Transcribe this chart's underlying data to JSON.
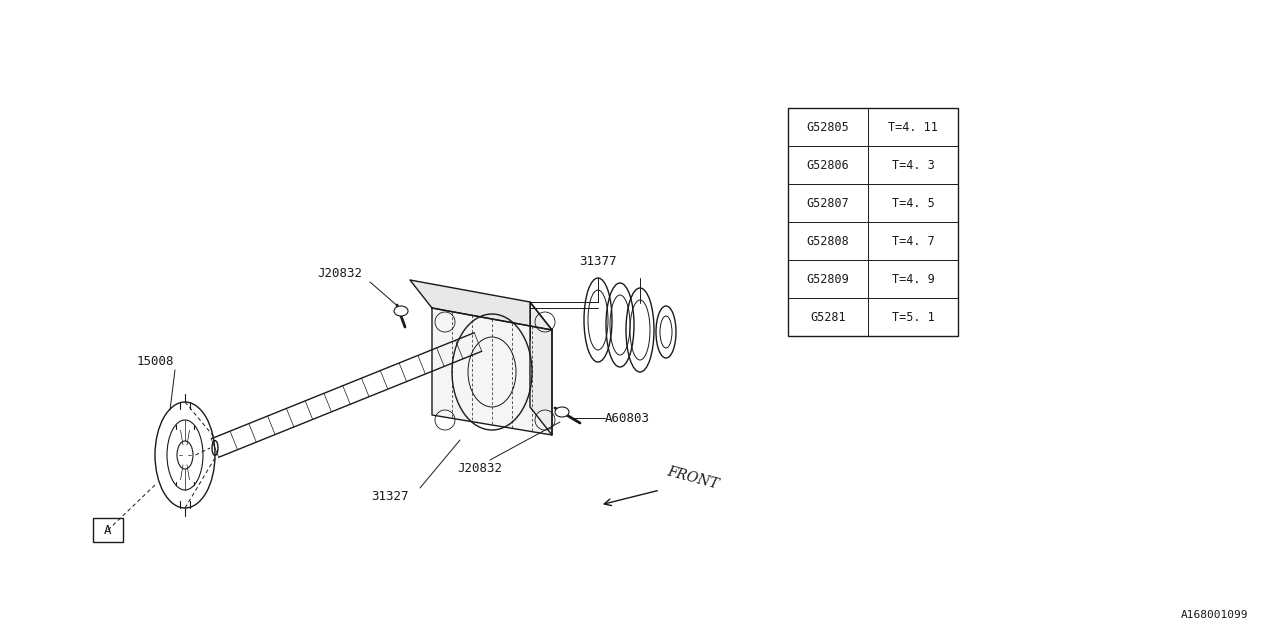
{
  "bg_color": "#ffffff",
  "line_color": "#1a1a1a",
  "fig_width": 12.8,
  "fig_height": 6.4,
  "table_data": [
    [
      "G52805",
      "T=4. 11"
    ],
    [
      "G52806",
      "T=4. 3"
    ],
    [
      "G52807",
      "T=4. 5"
    ],
    [
      "G52808",
      "T=4. 7"
    ],
    [
      "G52809",
      "T=4. 9"
    ],
    [
      "G5281",
      "T=5. 1"
    ]
  ],
  "bottom_id": "A168001099",
  "front_text": "FRONT"
}
